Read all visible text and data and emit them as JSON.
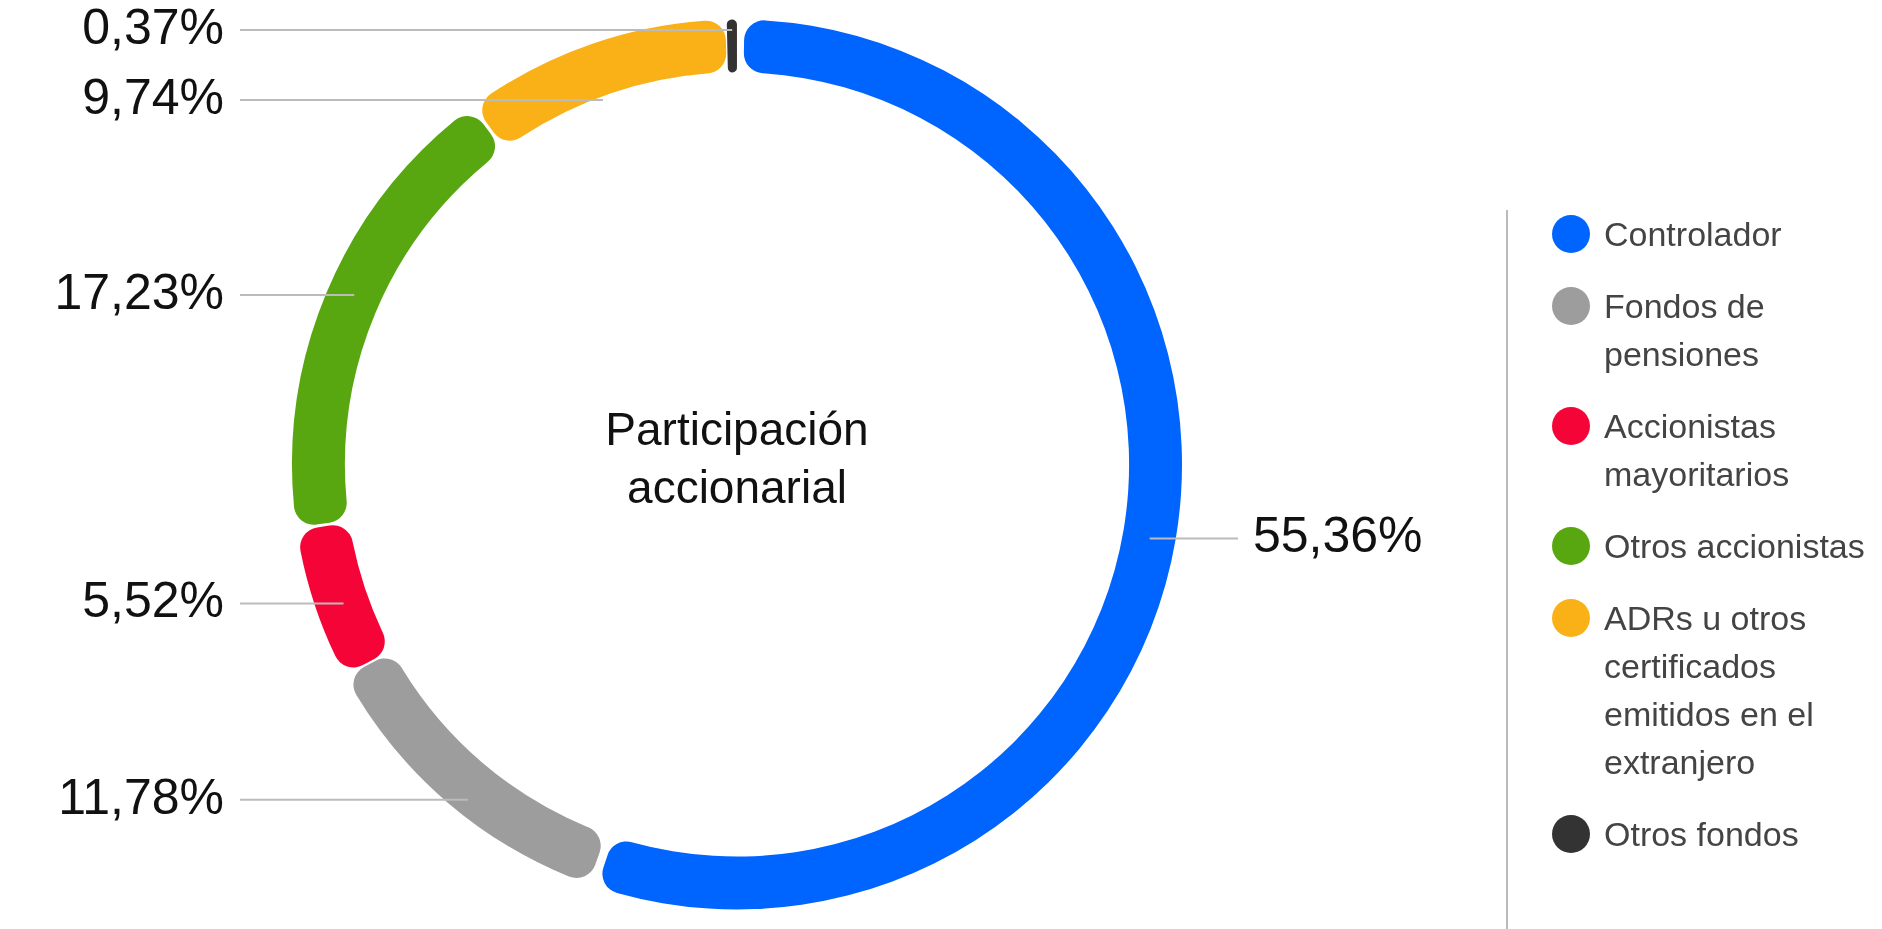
{
  "chart_data": {
    "type": "donut",
    "title": "Participación accionarial",
    "categories": [
      "Controlador",
      "Fondos de pensiones",
      "Accionistas mayoritarios",
      "Otros accionistas",
      "ADRs u otros certificados emitidos en el extranjero",
      "Otros fondos"
    ],
    "values": [
      55.36,
      11.78,
      5.52,
      17.23,
      9.74,
      0.37
    ],
    "colors": [
      "#0064ff",
      "#9d9d9d",
      "#f50537",
      "#58a610",
      "#f9b117",
      "#333333"
    ],
    "value_labels": [
      "55,36%",
      "11,78%",
      "5,52%",
      "17,23%",
      "9,74%",
      "0,37%"
    ],
    "legend": "right"
  }
}
